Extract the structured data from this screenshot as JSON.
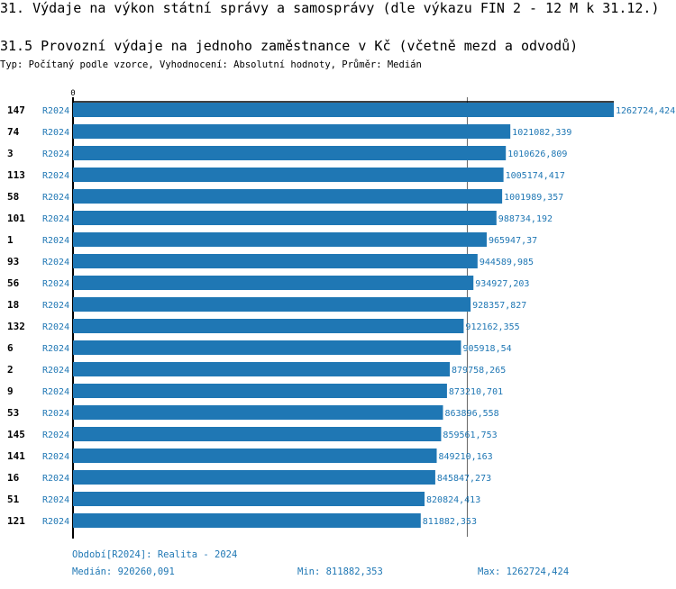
{
  "title": "31. Výdaje na výkon státní správy a samosprávy (dle výkazu FIN 2 - 12 M k 31.12.)",
  "subtitle": "31.5 Provozní výdaje na jednoho zaměstnance v Kč (včetně mezd a odvodů)",
  "description": "Typ: Počítaný podle vzorce, Vyhodnocení: Absolutní hodnoty, Průměr: Medián",
  "footer": {
    "period": "Období[R2024]: Realita - 2024",
    "median": "Medián: 920260,091",
    "min": "Min: 811882,353",
    "max": "Max: 1262724,424"
  },
  "colors": {
    "bar": "#1f77b4",
    "label": "#1f77b4"
  },
  "chart_data": {
    "type": "bar",
    "orientation": "horizontal",
    "xlim": [
      0,
      1262724.424
    ],
    "x_tick_labels": [
      "0"
    ],
    "median": 920260.091,
    "series_label": "R2024",
    "categories": [
      "147",
      "74",
      "3",
      "113",
      "58",
      "101",
      "1",
      "93",
      "56",
      "18",
      "132",
      "6",
      "2",
      "9",
      "53",
      "145",
      "141",
      "16",
      "51",
      "121"
    ],
    "values": [
      1262724.424,
      1021082.339,
      1010626.809,
      1005174.417,
      1001989.357,
      988734.192,
      965947.37,
      944589.985,
      934927.203,
      928357.827,
      912162.355,
      905918.54,
      879758.265,
      873210.701,
      863896.558,
      859561.753,
      849210.163,
      845847.273,
      820824.413,
      811882.353
    ],
    "value_labels": [
      "1262724,424",
      "1021082,339",
      "1010626,809",
      "1005174,417",
      "1001989,357",
      "988734,192",
      "965947,37",
      "944589,985",
      "934927,203",
      "928357,827",
      "912162,355",
      "905918,54",
      "879758,265",
      "873210,701",
      "863896,558",
      "859561,753",
      "849210,163",
      "845847,273",
      "820824,413",
      "811882,353"
    ]
  }
}
